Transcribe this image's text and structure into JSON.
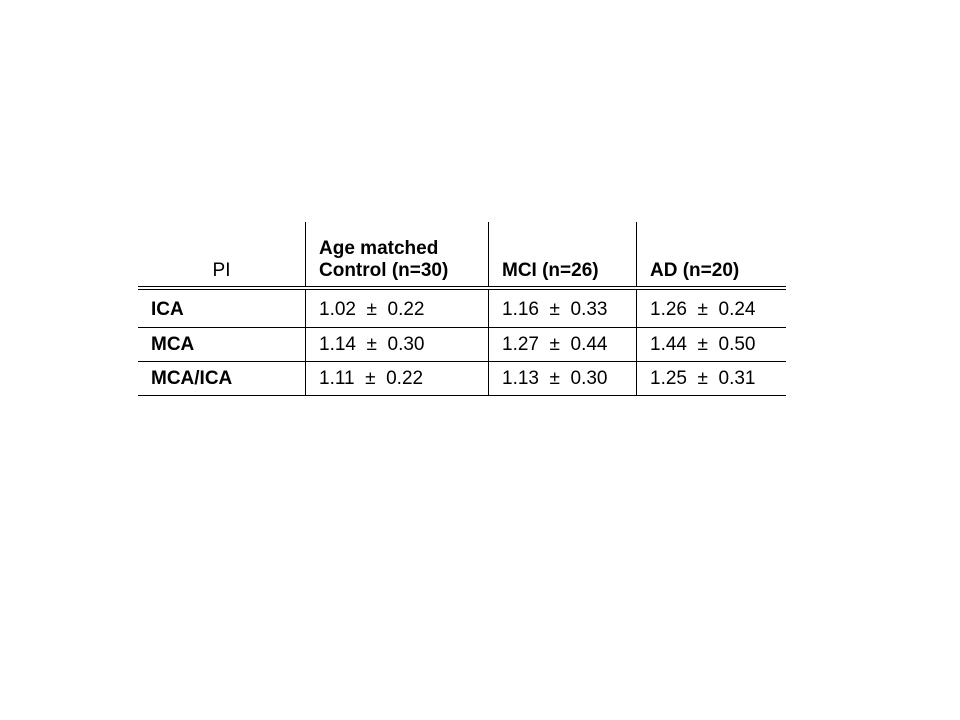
{
  "table": {
    "header": [
      "PI",
      "Age matched Control (n=30)",
      "MCI (n=26)",
      "AD (n=20)"
    ],
    "rows": [
      [
        "ICA",
        "1.02  ±  0.22",
        "1.16  ±  0.33",
        "1.26  ±  0.24"
      ],
      [
        "MCA",
        "1.14  ±  0.30",
        "1.27  ±  0.44",
        "1.44  ±  0.50"
      ],
      [
        "MCA/ICA",
        "1.11  ±  0.22",
        "1.13  ±  0.30",
        "1.25  ±  0.31"
      ]
    ]
  }
}
